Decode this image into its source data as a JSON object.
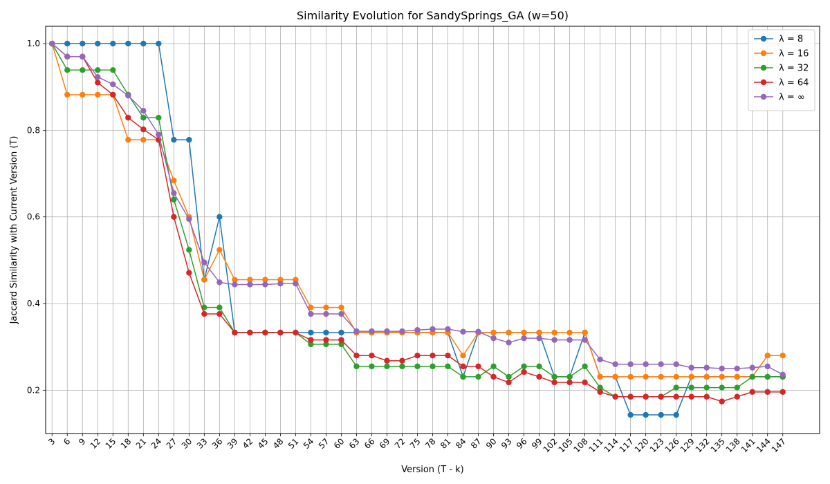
{
  "chart_data": {
    "type": "line",
    "title": "Similarity Evolution for SandySprings_GA (w=50)",
    "xlabel": "Version (T - k)",
    "ylabel": "Jaccard Similarity with Current Version (T)",
    "x": [
      3,
      6,
      9,
      12,
      15,
      18,
      21,
      24,
      27,
      30,
      33,
      36,
      39,
      42,
      45,
      48,
      51,
      54,
      57,
      60,
      63,
      66,
      69,
      72,
      75,
      78,
      81,
      84,
      87,
      90,
      93,
      96,
      99,
      102,
      105,
      108,
      111,
      114,
      117,
      120,
      123,
      126,
      129,
      132,
      135,
      138,
      141,
      144,
      147
    ],
    "yticks": [
      "0.2",
      "0.4",
      "0.6",
      "0.8",
      "1.0"
    ],
    "ylim": [
      0.1,
      1.04
    ],
    "grid": true,
    "legend_position": "top-right",
    "series": [
      {
        "name": "λ = 8",
        "color": "#1f77b4",
        "values": [
          1.0,
          1.0,
          1.0,
          1.0,
          1.0,
          1.0,
          1.0,
          1.0,
          0.778,
          0.778,
          0.455,
          0.6,
          0.333,
          0.333,
          0.333,
          0.333,
          0.333,
          0.333,
          0.333,
          0.333,
          0.333,
          0.333,
          0.333,
          0.333,
          0.333,
          0.333,
          0.333,
          0.231,
          0.333,
          0.333,
          0.333,
          0.333,
          0.333,
          0.231,
          0.231,
          0.333,
          0.231,
          0.231,
          0.143,
          0.143,
          0.143,
          0.143,
          0.231,
          0.231,
          0.231,
          0.231,
          0.231,
          0.231,
          0.231
        ]
      },
      {
        "name": "λ = 16",
        "color": "#ff7f0e",
        "values": [
          1.0,
          0.882,
          0.882,
          0.882,
          0.882,
          0.778,
          0.778,
          0.778,
          0.684,
          0.6,
          0.455,
          0.524,
          0.455,
          0.455,
          0.455,
          0.455,
          0.455,
          0.391,
          0.391,
          0.391,
          0.333,
          0.333,
          0.333,
          0.333,
          0.333,
          0.333,
          0.333,
          0.28,
          0.333,
          0.333,
          0.333,
          0.333,
          0.333,
          0.333,
          0.333,
          0.333,
          0.231,
          0.231,
          0.231,
          0.231,
          0.231,
          0.231,
          0.231,
          0.231,
          0.231,
          0.231,
          0.231,
          0.28,
          0.28
        ]
      },
      {
        "name": "λ = 32",
        "color": "#2ca02c",
        "values": [
          1.0,
          0.939,
          0.939,
          0.939,
          0.939,
          0.882,
          0.829,
          0.829,
          0.64,
          0.524,
          0.391,
          0.391,
          0.333,
          0.333,
          0.333,
          0.333,
          0.333,
          0.306,
          0.306,
          0.306,
          0.255,
          0.255,
          0.255,
          0.255,
          0.255,
          0.255,
          0.255,
          0.231,
          0.231,
          0.255,
          0.231,
          0.255,
          0.255,
          0.231,
          0.231,
          0.255,
          0.206,
          0.185,
          0.185,
          0.185,
          0.185,
          0.206,
          0.206,
          0.206,
          0.206,
          0.206,
          0.231,
          0.231,
          0.231
        ]
      },
      {
        "name": "λ = 64",
        "color": "#d62728",
        "values": [
          1.0,
          0.97,
          0.97,
          0.91,
          0.882,
          0.829,
          0.802,
          0.778,
          0.6,
          0.471,
          0.376,
          0.376,
          0.333,
          0.333,
          0.333,
          0.333,
          0.333,
          0.316,
          0.316,
          0.316,
          0.28,
          0.28,
          0.268,
          0.268,
          0.28,
          0.28,
          0.28,
          0.255,
          0.255,
          0.231,
          0.218,
          0.242,
          0.231,
          0.218,
          0.218,
          0.218,
          0.196,
          0.185,
          0.185,
          0.185,
          0.185,
          0.185,
          0.185,
          0.185,
          0.174,
          0.185,
          0.196,
          0.196,
          0.196
        ]
      },
      {
        "name": "λ = ∞",
        "color": "#9467bd",
        "values": [
          1.0,
          0.97,
          0.97,
          0.923,
          0.906,
          0.88,
          0.845,
          0.79,
          0.655,
          0.595,
          0.495,
          0.449,
          0.444,
          0.444,
          0.444,
          0.446,
          0.446,
          0.376,
          0.376,
          0.376,
          0.336,
          0.336,
          0.336,
          0.336,
          0.339,
          0.341,
          0.341,
          0.335,
          0.335,
          0.32,
          0.31,
          0.32,
          0.32,
          0.316,
          0.316,
          0.316,
          0.271,
          0.26,
          0.26,
          0.26,
          0.26,
          0.26,
          0.252,
          0.252,
          0.25,
          0.25,
          0.252,
          0.255,
          0.236
        ]
      }
    ]
  }
}
